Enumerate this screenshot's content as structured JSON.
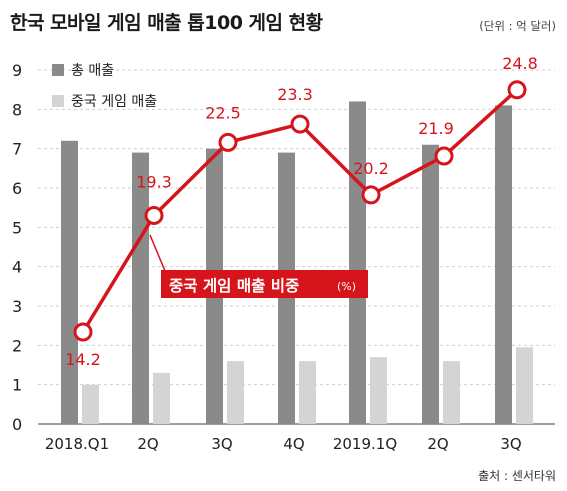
{
  "chart_data": {
    "type": "bar",
    "title": "한국 모바일 게임 매출 톱100 게임 현황",
    "unit_note": "(단위 : 억 달러)",
    "categories": [
      "2018.Q1",
      "2Q",
      "3Q",
      "4Q",
      "2019.1Q",
      "2Q",
      "3Q"
    ],
    "ylim": [
      0,
      9
    ],
    "yticks": [
      "0",
      "1",
      "2",
      "3",
      "4",
      "5",
      "6",
      "7",
      "8",
      "9"
    ],
    "grid": "horizontal",
    "legend_position": "top-left",
    "series": [
      {
        "name": "총 매출",
        "type": "bar",
        "color": "#8a8a8a",
        "values": [
          7.2,
          6.9,
          7.0,
          6.9,
          8.2,
          7.1,
          8.1
        ]
      },
      {
        "name": "중국 게임 매출",
        "type": "bar",
        "color": "#d4d4d4",
        "values": [
          1.0,
          1.3,
          1.6,
          1.6,
          1.7,
          1.6,
          1.95
        ]
      },
      {
        "name": "중국 게임 매출 비중",
        "unit": "(%)",
        "type": "line",
        "color": "#d6141c",
        "values": [
          14.2,
          19.3,
          22.5,
          23.3,
          20.2,
          21.9,
          24.8
        ],
        "labels": [
          "14.2",
          "19.3",
          "22.5",
          "23.3",
          "20.2",
          "21.9",
          "24.8"
        ]
      }
    ],
    "callout": {
      "text": "중국 게임 매출 비중",
      "unit": "(%)"
    }
  },
  "source": "출처 : 센서타워"
}
